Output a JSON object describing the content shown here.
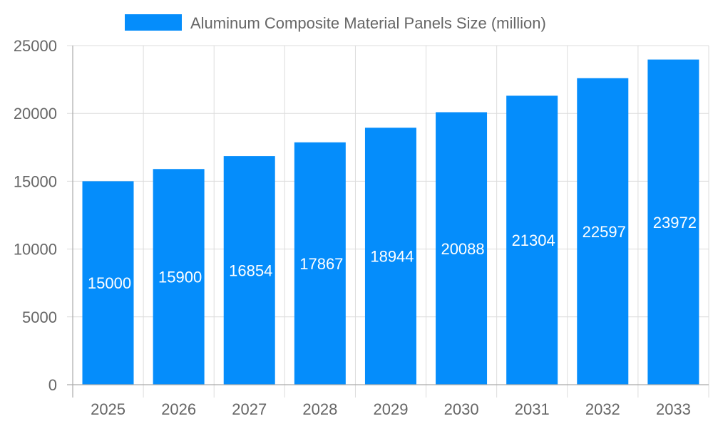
{
  "chart_data": {
    "type": "bar",
    "title": "",
    "xlabel": "",
    "ylabel": "",
    "categories": [
      "2025",
      "2026",
      "2027",
      "2028",
      "2029",
      "2030",
      "2031",
      "2032",
      "2033"
    ],
    "series": [
      {
        "name": "Aluminum Composite Material Panels Size (million)",
        "values": [
          15000,
          15900,
          16854,
          17867,
          18944,
          20088,
          21304,
          22597,
          23972
        ],
        "color": "#058dfb"
      }
    ],
    "ylim": [
      0,
      25000
    ],
    "yticks": [
      0,
      5000,
      10000,
      15000,
      20000,
      25000
    ],
    "grid": true,
    "legend": "top-center",
    "data_labels": true
  }
}
